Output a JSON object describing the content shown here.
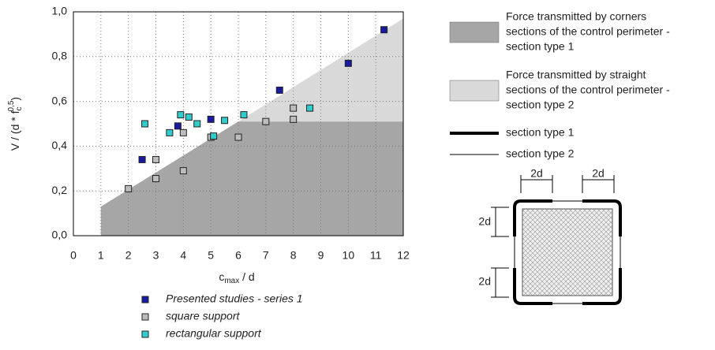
{
  "chart_data": {
    "type": "scatter",
    "x_label": [
      "c",
      "max",
      " / d"
    ],
    "y_label": [
      "V / (d * f",
      "c",
      "0,5",
      ")"
    ],
    "xlim": [
      0,
      12
    ],
    "ylim": [
      0,
      1
    ],
    "xticks": [
      0,
      1,
      2,
      3,
      4,
      5,
      6,
      7,
      8,
      9,
      10,
      11,
      12
    ],
    "yticks": [
      {
        "value": 0,
        "label": "0,0"
      },
      {
        "value": 0.2,
        "label": "0,2"
      },
      {
        "value": 0.4,
        "label": "0,4"
      },
      {
        "value": 0.6,
        "label": "0,6"
      },
      {
        "value": 0.8,
        "label": "0,8"
      },
      {
        "value": 1,
        "label": "1,0"
      }
    ],
    "grid": true,
    "areas": [
      {
        "lines": [
          "Force transmitted by corners",
          "sections of the control perimeter -",
          "section type 1"
        ],
        "color": "#a6a6a6",
        "x": [
          1,
          1,
          6,
          12,
          12
        ],
        "values": [
          0,
          0.13,
          0.51,
          0.51,
          0
        ]
      },
      {
        "lines": [
          "Force transmitted by straight",
          "sections of the control perimeter -",
          "section type 2"
        ],
        "color": "#d9d9d9",
        "x": [
          6,
          12,
          12
        ],
        "values": [
          0.51,
          0.97,
          0.51
        ]
      }
    ],
    "lines_legend": [
      {
        "name": "section type 1",
        "width": 4
      },
      {
        "name": "section type 2",
        "width": 1
      }
    ],
    "series": [
      {
        "name": "Presented studies - series 1",
        "color": "#1a1aa0",
        "x": [
          2.5,
          3.8,
          5,
          7.5,
          10,
          11.3
        ],
        "values": [
          0.34,
          0.49,
          0.52,
          0.65,
          0.77,
          0.92
        ]
      },
      {
        "name": "square support",
        "color": "#bdbdbd",
        "x": [
          2,
          3,
          3,
          4,
          4,
          5,
          6,
          7,
          8,
          8
        ],
        "values": [
          0.21,
          0.34,
          0.255,
          0.46,
          0.29,
          0.44,
          0.44,
          0.51,
          0.57,
          0.52
        ]
      },
      {
        "name": "rectangular support",
        "color": "#33cccc",
        "x": [
          2.6,
          3.5,
          3.9,
          4.2,
          4.5,
          5.1,
          5.5,
          6.2,
          8.6
        ],
        "values": [
          0.5,
          0.46,
          0.54,
          0.53,
          0.5,
          0.445,
          0.515,
          0.54,
          0.57
        ]
      }
    ]
  },
  "diagram": {
    "labels": [
      "2d",
      "2d",
      "2d",
      "2d"
    ]
  }
}
